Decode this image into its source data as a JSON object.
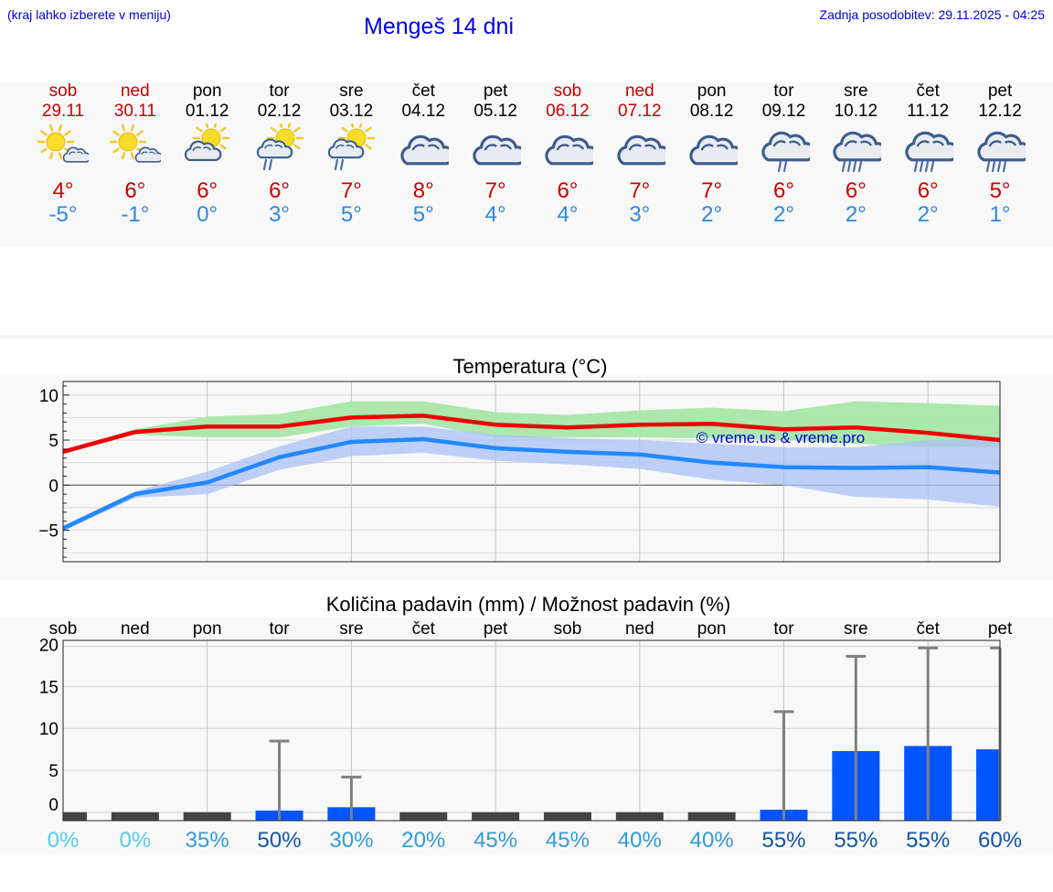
{
  "header": {
    "menu_hint": "(kraj lahko izberete v meniju)",
    "title": "Mengeš 14 dni",
    "updated": "Zadnja posodobitev: 29.11.2025 - 04:25"
  },
  "colors": {
    "weekend": "#cc0000",
    "weekday": "#000000",
    "tmax": "#ee0000",
    "tmin": "#2288ff",
    "band_max": "#a8e6a8",
    "band_min": "#a9c2f5",
    "bar": "#0055ff",
    "whisker": "#808080",
    "prob_low": "#55ccee",
    "prob_mid": "#3399dd",
    "prob_high": "#1155aa"
  },
  "days": [
    {
      "name": "sob",
      "date": "29.11",
      "weekend": true,
      "icon": "sun-cloud-icon",
      "tmax": "4°",
      "tmin": "-5°"
    },
    {
      "name": "ned",
      "date": "30.11",
      "weekend": true,
      "icon": "sun-cloud-icon",
      "tmax": "6°",
      "tmin": "-1°"
    },
    {
      "name": "pon",
      "date": "01.12",
      "weekend": false,
      "icon": "cloud-sun-icon",
      "tmax": "6°",
      "tmin": "0°"
    },
    {
      "name": "tor",
      "date": "02.12",
      "weekend": false,
      "icon": "sun-rain-icon",
      "tmax": "6°",
      "tmin": "3°"
    },
    {
      "name": "sre",
      "date": "03.12",
      "weekend": false,
      "icon": "sun-rain-icon",
      "tmax": "7°",
      "tmin": "5°"
    },
    {
      "name": "čet",
      "date": "04.12",
      "weekend": false,
      "icon": "cloud-icon",
      "tmax": "8°",
      "tmin": "5°"
    },
    {
      "name": "pet",
      "date": "05.12",
      "weekend": false,
      "icon": "cloud-icon",
      "tmax": "7°",
      "tmin": "4°"
    },
    {
      "name": "sob",
      "date": "06.12",
      "weekend": true,
      "icon": "cloud-icon",
      "tmax": "6°",
      "tmin": "4°"
    },
    {
      "name": "ned",
      "date": "07.12",
      "weekend": true,
      "icon": "cloud-icon",
      "tmax": "7°",
      "tmin": "3°"
    },
    {
      "name": "pon",
      "date": "08.12",
      "weekend": false,
      "icon": "cloud-icon",
      "tmax": "7°",
      "tmin": "2°"
    },
    {
      "name": "tor",
      "date": "09.12",
      "weekend": false,
      "icon": "cloud-light-rain-icon",
      "tmax": "6°",
      "tmin": "2°"
    },
    {
      "name": "sre",
      "date": "10.12",
      "weekend": false,
      "icon": "cloud-rain-icon",
      "tmax": "6°",
      "tmin": "2°"
    },
    {
      "name": "čet",
      "date": "11.12",
      "weekend": false,
      "icon": "cloud-rain-icon",
      "tmax": "6°",
      "tmin": "2°"
    },
    {
      "name": "pet",
      "date": "12.12",
      "weekend": false,
      "icon": "cloud-rain-icon",
      "tmax": "5°",
      "tmin": "1°"
    }
  ],
  "chart_data": [
    {
      "type": "line",
      "title": "Temperatura (°C)",
      "watermark": "© vreme.us & vreme.pro",
      "x": [
        0,
        1,
        2,
        3,
        4,
        5,
        6,
        7,
        8,
        9,
        10,
        11,
        12,
        13
      ],
      "ylim": [
        -8.5,
        11.5
      ],
      "yticks": [
        {
          "value": 10,
          "label": "10"
        },
        {
          "value": 5,
          "label": "5"
        },
        {
          "value": 0,
          "label": "0"
        },
        {
          "value": -5,
          "label": "−5"
        }
      ],
      "grid": true,
      "series": [
        {
          "name": "max",
          "values": [
            3.7,
            5.9,
            6.5,
            6.5,
            7.5,
            7.7,
            6.7,
            6.4,
            6.7,
            6.8,
            6.2,
            6.4,
            5.8,
            5.0
          ],
          "band_low": [
            3.5,
            5.6,
            5.3,
            5.3,
            6.5,
            6.8,
            5.3,
            5.3,
            5.3,
            5.2,
            5.0,
            4.6,
            4.2,
            4.2
          ],
          "band_high": [
            3.9,
            6.2,
            7.6,
            7.9,
            9.3,
            9.3,
            8.1,
            7.8,
            8.3,
            8.6,
            8.2,
            9.3,
            9.1,
            8.8
          ]
        },
        {
          "name": "min",
          "values": [
            -4.8,
            -1.0,
            0.3,
            3.1,
            4.8,
            5.1,
            4.1,
            3.7,
            3.4,
            2.5,
            2.0,
            1.9,
            2.0,
            1.4
          ],
          "band_low": [
            -5.1,
            -1.4,
            -1.0,
            1.7,
            3.2,
            3.6,
            2.7,
            2.3,
            1.8,
            0.6,
            0.0,
            -1.3,
            -1.6,
            -2.4
          ],
          "band_high": [
            -4.5,
            -0.7,
            1.5,
            4.3,
            6.5,
            6.5,
            5.6,
            5.2,
            5.0,
            4.6,
            4.2,
            4.2,
            5.0,
            5.2
          ]
        }
      ]
    },
    {
      "type": "bar",
      "title": "Količina padavin (mm) / Možnost padavin (%)",
      "categories": [
        "sob",
        "ned",
        "pon",
        "tor",
        "sre",
        "čet",
        "pet",
        "sob",
        "ned",
        "pon",
        "tor",
        "sre",
        "čet",
        "pet"
      ],
      "ylim": [
        -1,
        20.5
      ],
      "yticks": [
        {
          "value": 20,
          "label": "20"
        },
        {
          "value": 15,
          "label": "15"
        },
        {
          "value": 10,
          "label": "10"
        },
        {
          "value": 5,
          "label": "5"
        },
        {
          "value": 0,
          "label": "0"
        }
      ],
      "values": [
        0,
        0,
        0,
        0.2,
        0.6,
        0,
        0,
        0,
        0,
        0,
        0.3,
        7.3,
        7.9,
        7.5
      ],
      "error_max": [
        0,
        0,
        0,
        8.5,
        4.2,
        0,
        0,
        0,
        0,
        0,
        12.0,
        18.6,
        19.6,
        19.6
      ],
      "probabilities": [
        "0%",
        "0%",
        "35%",
        "50%",
        "30%",
        "20%",
        "45%",
        "45%",
        "40%",
        "40%",
        "55%",
        "55%",
        "55%",
        "60%"
      ],
      "probability_values": [
        0,
        0,
        35,
        50,
        30,
        20,
        45,
        45,
        40,
        40,
        55,
        55,
        55,
        60
      ]
    }
  ]
}
